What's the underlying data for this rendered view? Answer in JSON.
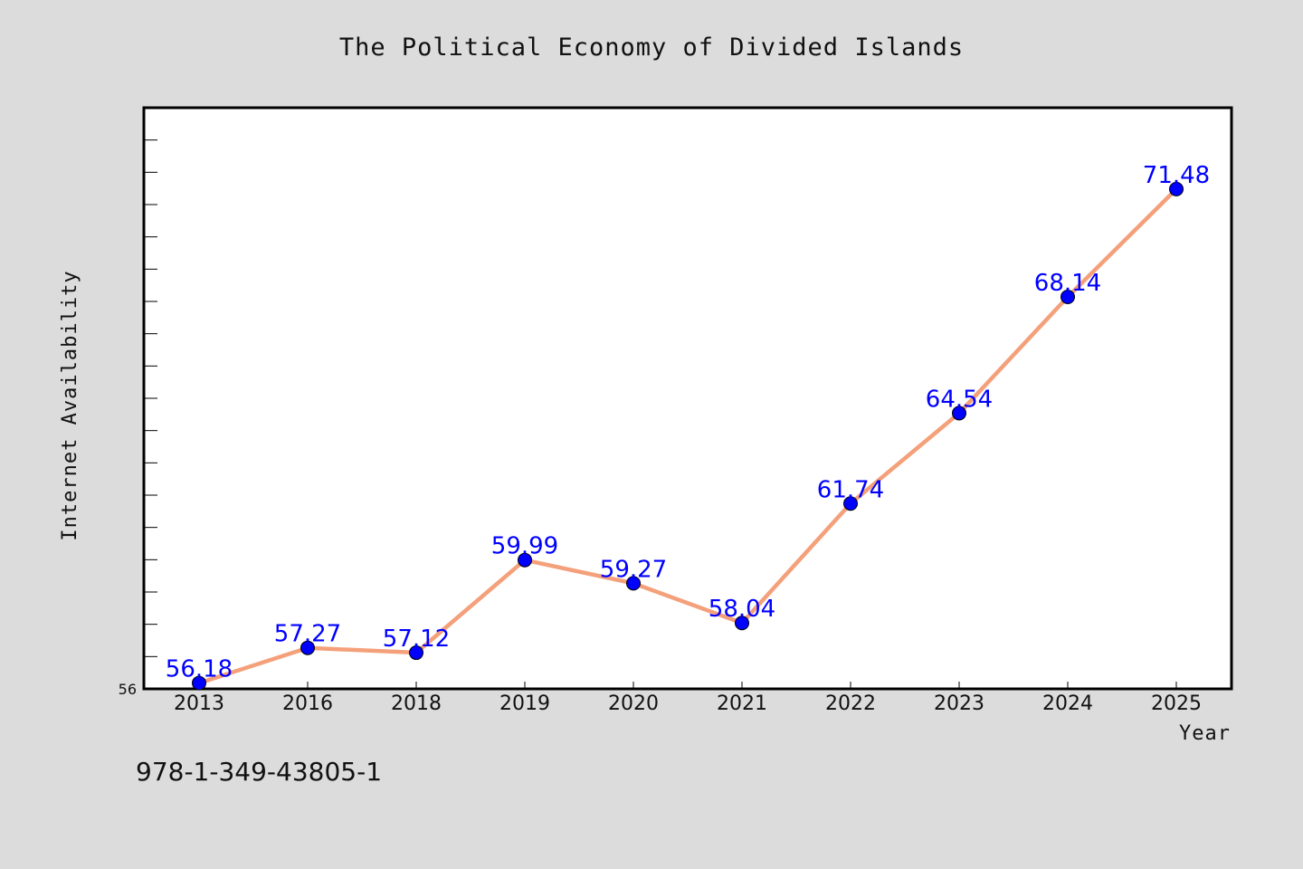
{
  "footer_text": "978-1-349-43805-1",
  "colors": {
    "background": "#dcdcdc",
    "plot_background": "#ffffff",
    "line": "#f4a07a",
    "marker": "#0000ff",
    "data_label": "#0000ff"
  },
  "chart_data": {
    "type": "line",
    "title": "The Political Economy of Divided Islands",
    "xlabel": "Year",
    "ylabel": "Internet Availability",
    "categories": [
      "2013",
      "2016",
      "2018",
      "2019",
      "2020",
      "2021",
      "2022",
      "2023",
      "2024",
      "2025"
    ],
    "series": [
      {
        "values": [
          56.18,
          57.27,
          57.12,
          59.99,
          59.27,
          58.04,
          61.74,
          64.54,
          68.14,
          71.48
        ]
      }
    ],
    "data_labels": [
      "56.18",
      "57.27",
      "57.12",
      "59.99",
      "59.27",
      "58.04",
      "61.74",
      "64.54",
      "68.14",
      "71.48"
    ],
    "y_tick_labels": [
      "56"
    ],
    "ylim": [
      56,
      74
    ],
    "y_minor_step": 1,
    "grid": false,
    "legend": "none"
  }
}
